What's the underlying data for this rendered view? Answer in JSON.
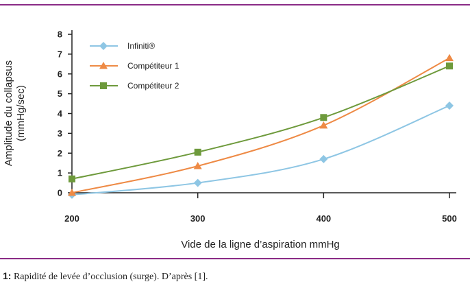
{
  "caption": {
    "prefix": "1:",
    "text": " Rapidité de levée d’occlusion (surge). D’après [1]."
  },
  "colors": {
    "rule": "#8a2b86",
    "axis": "#222222"
  },
  "chart_data": {
    "type": "line",
    "title": "",
    "xlabel": "Vide de la ligne d’aspiration mmHg",
    "ylabel_lines": [
      "Amplitude du collapsus",
      "(mmHg/sec)"
    ],
    "x": [
      200,
      300,
      400,
      500
    ],
    "xticks": [
      "200",
      "300",
      "400",
      "500"
    ],
    "yticks": [
      "0",
      "1",
      "2",
      "3",
      "4",
      "5",
      "6",
      "7",
      "8"
    ],
    "xlim": [
      200,
      500
    ],
    "ylim": [
      0,
      8
    ],
    "grid": false,
    "legend_position": "top-left",
    "series": [
      {
        "name": "Infiniti®",
        "values": [
          -0.1,
          0.5,
          1.7,
          4.4
        ],
        "color": "#8ec6e4",
        "marker": "diamond"
      },
      {
        "name": "Compétiteur 1",
        "values": [
          0.0,
          1.35,
          3.4,
          6.8
        ],
        "color": "#ee8a45",
        "marker": "triangle"
      },
      {
        "name": "Compétiteur 2",
        "values": [
          0.7,
          2.05,
          3.8,
          6.4
        ],
        "color": "#6e9a3c",
        "marker": "square"
      }
    ]
  }
}
